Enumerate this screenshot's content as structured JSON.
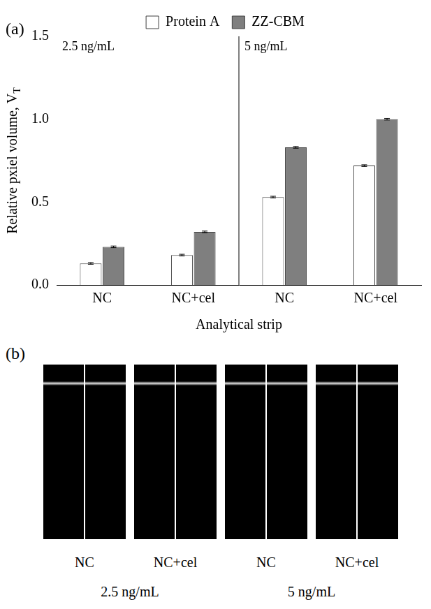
{
  "chart_data": {
    "type": "bar",
    "panel_label": "(a)",
    "categories": [
      "NC",
      "NC+cel",
      "NC",
      "NC+cel"
    ],
    "group_labels": [
      "2.5 ng/mL",
      "5 ng/mL"
    ],
    "x_label": "Analytical strip",
    "y_label": {
      "text": "Relative pxiel volume, V",
      "subscript": "T"
    },
    "series": [
      {
        "name": "Protein A",
        "color": "#ffffff",
        "values": [
          0.13,
          0.18,
          0.53,
          0.72
        ],
        "errors": [
          0.005,
          0.005,
          0.005,
          0.005
        ]
      },
      {
        "name": "ZZ-CBM",
        "color": "#7f7f7f",
        "values": [
          0.23,
          0.32,
          0.83,
          1.0
        ],
        "errors": [
          0.005,
          0.005,
          0.005,
          0.005
        ]
      }
    ],
    "ylim": [
      0,
      1.5
    ],
    "yticks": [
      {
        "value": 0,
        "label": "0.0"
      },
      0.5,
      {
        "value": 1,
        "label": "1.0"
      },
      1.5
    ],
    "grid": false,
    "legend": "top"
  },
  "panel_b": {
    "panel_label": "(b)",
    "strips": [
      "NC",
      "NC+cel",
      "NC",
      "NC+cel"
    ],
    "group_labels": [
      "2.5 ng/mL",
      "5 ng/mL"
    ]
  }
}
